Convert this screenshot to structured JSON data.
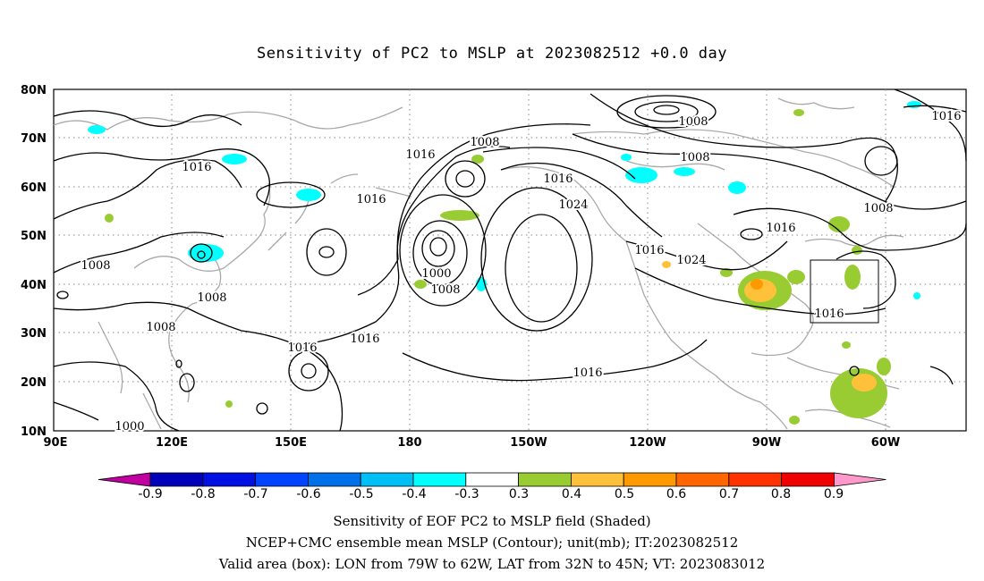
{
  "title": "Sensitivity of PC2 to MSLP at 2023082512 +0.0 day",
  "axes": {
    "lat_labels": [
      "80N",
      "70N",
      "60N",
      "50N",
      "40N",
      "30N",
      "20N",
      "10N"
    ],
    "lon_labels": [
      "90E",
      "120E",
      "150E",
      "180",
      "150W",
      "120W",
      "90W",
      "60W"
    ]
  },
  "contour_labels": [
    "1016",
    "1008",
    "1016",
    "1016",
    "1016",
    "1008",
    "1016",
    "1024",
    "1000",
    "1008",
    "1016",
    "1024",
    "1016",
    "1008",
    "1016",
    "1008",
    "1008",
    "1008",
    "1008",
    "1016",
    "1016",
    "1000",
    "1008",
    "1008"
  ],
  "valid_box_label": "1016",
  "colorbar": {
    "labels": [
      "-0.9",
      "-0.8",
      "-0.7",
      "-0.6",
      "-0.5",
      "-0.4",
      "-0.3",
      "0.3",
      "0.4",
      "0.5",
      "0.6",
      "0.7",
      "0.8",
      "0.9"
    ],
    "colors": [
      "#c000a0",
      "#0000b8",
      "#0010e0",
      "#0044ff",
      "#0070e8",
      "#00bff4",
      "#00ffff",
      "#ffffff",
      "#99cc33",
      "#ffc13a",
      "#ff9900",
      "#ff6600",
      "#ff3300",
      "#ee0000",
      "#ff99cc"
    ]
  },
  "captions": [
    "Sensitivity of EOF PC2 to MSLP field (Shaded)",
    "NCEP+CMC ensemble mean MSLP (Contour); unit(mb); IT:2023082512",
    "Valid area (box): LON from 79W to 62W, LAT from 32N to 45N; VT: 2023083012"
  ]
}
